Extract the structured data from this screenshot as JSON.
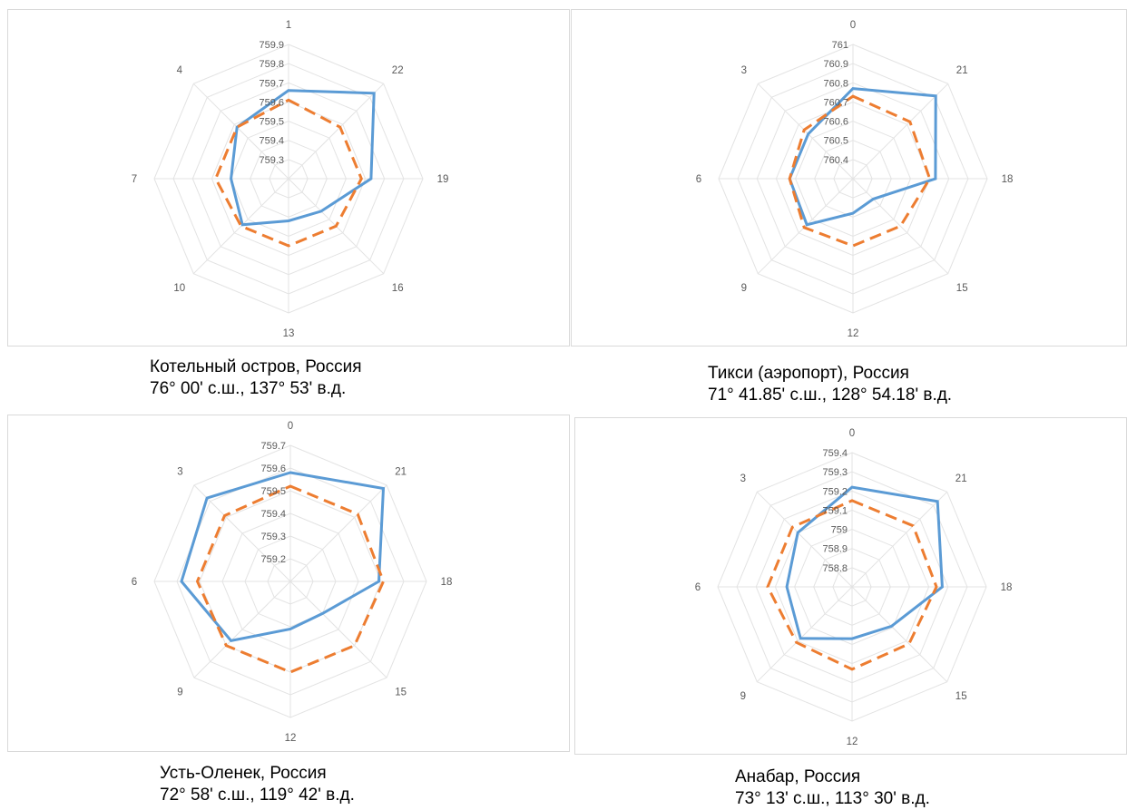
{
  "chart_data": [
    {
      "type": "radar",
      "title": "",
      "categories": [
        "1",
        "22",
        "19",
        "16",
        "13",
        "10",
        "7",
        "4"
      ],
      "ticks": [
        "759.3",
        "759.4",
        "759.5",
        "759.6",
        "759.7",
        "759.8",
        "759.9"
      ],
      "rlim": [
        759.2,
        759.9
      ],
      "grid": true,
      "series": [
        {
          "color": "#5b9bd5",
          "dash": "solid",
          "values": [
            759.66,
            759.83,
            759.63,
            759.44,
            759.42,
            759.54,
            759.5,
            759.58
          ]
        },
        {
          "color": "#ed7d31",
          "dash": "dashed",
          "values": [
            759.61,
            759.58,
            759.58,
            759.55,
            759.55,
            759.55,
            759.58,
            759.58
          ]
        }
      ],
      "caption": {
        "line1": "Котельный остров, Россия",
        "line2": "76° 00' с.ш., 137° 53' в.д."
      }
    },
    {
      "type": "radar",
      "title": "",
      "categories": [
        "0",
        "21",
        "18",
        "15",
        "12",
        "9",
        "6",
        "3"
      ],
      "ticks": [
        "760.4",
        "760.5",
        "760.6",
        "760.7",
        "760.8",
        "760.9",
        "761"
      ],
      "rlim": [
        760.3,
        761.0
      ],
      "grid": true,
      "series": [
        {
          "color": "#5b9bd5",
          "dash": "solid",
          "values": [
            760.77,
            760.91,
            760.73,
            760.45,
            760.48,
            760.64,
            760.63,
            760.63
          ]
        },
        {
          "color": "#ed7d31",
          "dash": "dashed",
          "values": [
            760.73,
            760.72,
            760.7,
            760.65,
            760.65,
            760.66,
            760.63,
            760.66
          ]
        }
      ],
      "caption": {
        "line1": "Тикси (аэропорт), Россия",
        "line2": "71° 41.85' с.ш., 128° 54.18' в.д."
      }
    },
    {
      "type": "radar",
      "title": "",
      "categories": [
        "0",
        "21",
        "18",
        "15",
        "12",
        "9",
        "6",
        "3"
      ],
      "ticks": [
        "759.2",
        "759.3",
        "759.4",
        "759.5",
        "759.6",
        "759.7"
      ],
      "rlim": [
        759.1,
        759.7
      ],
      "grid": true,
      "series": [
        {
          "color": "#5b9bd5",
          "dash": "solid",
          "values": [
            759.58,
            759.68,
            759.49,
            759.3,
            759.31,
            759.47,
            759.58,
            759.62
          ]
        },
        {
          "color": "#ed7d31",
          "dash": "dashed",
          "values": [
            759.52,
            759.52,
            759.51,
            759.5,
            759.5,
            759.5,
            759.51,
            759.51
          ]
        }
      ],
      "caption": {
        "line1": "Усть-Оленек, Россия",
        "line2": "72° 58' с.ш., 119° 42' в.д."
      }
    },
    {
      "type": "radar",
      "title": "",
      "categories": [
        "0",
        "21",
        "18",
        "15",
        "12",
        "9",
        "6",
        "3"
      ],
      "ticks": [
        "758.8",
        "758.9",
        "759",
        "759.1",
        "759.2",
        "759.3",
        "759.4"
      ],
      "rlim": [
        758.7,
        759.4
      ],
      "grid": true,
      "series": [
        {
          "color": "#5b9bd5",
          "dash": "solid",
          "values": [
            759.22,
            759.33,
            759.17,
            758.99,
            758.97,
            759.08,
            759.04,
            759.1
          ]
        },
        {
          "color": "#ed7d31",
          "dash": "dashed",
          "values": [
            759.15,
            759.15,
            759.14,
            759.12,
            759.13,
            759.11,
            759.14,
            759.14
          ]
        }
      ],
      "caption": {
        "line1": "Анабар, Россия",
        "line2": "73° 13' с.ш., 113° 30' в.д."
      }
    }
  ]
}
